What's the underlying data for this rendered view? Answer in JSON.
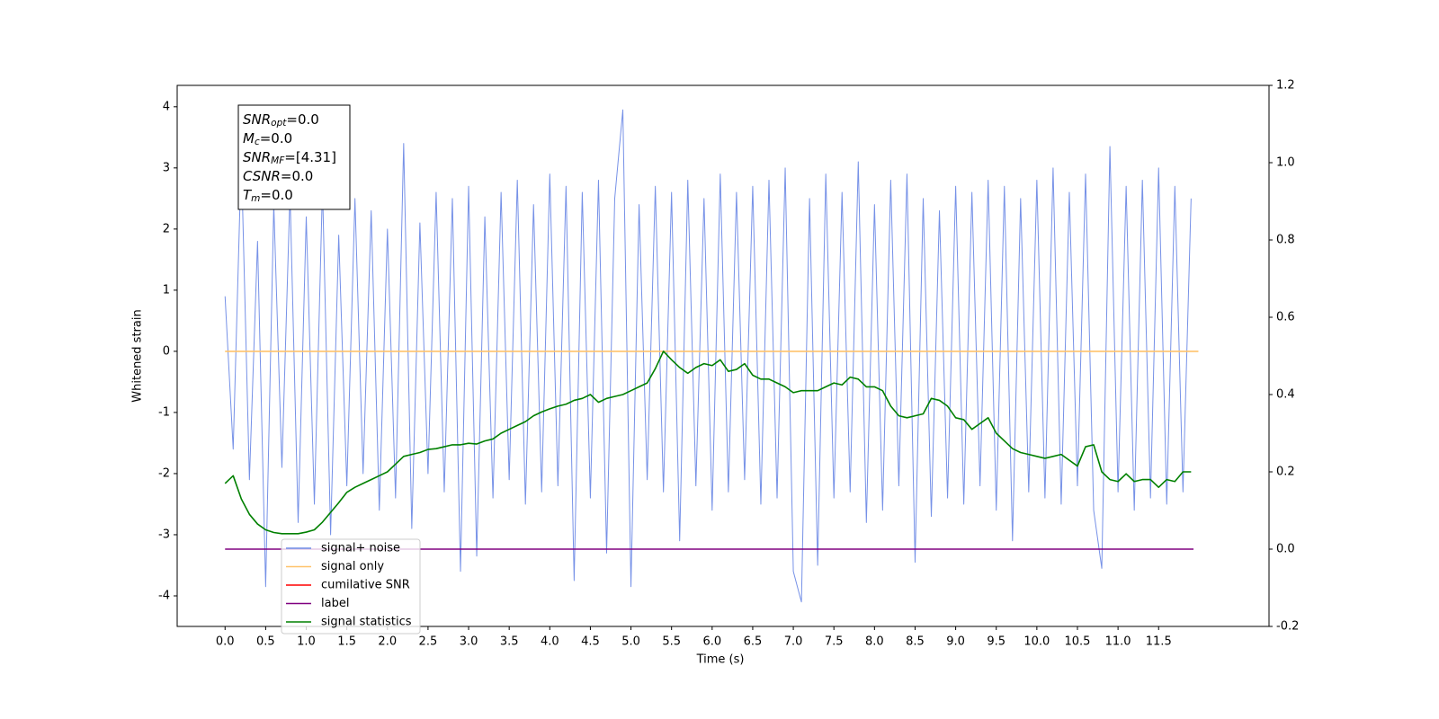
{
  "chart_data": {
    "type": "line",
    "xlabel": "Time (s)",
    "ylabel": "Whitened strain",
    "xlim": [
      -0.59,
      12.86
    ],
    "ylim": [
      -4.5,
      4.35
    ],
    "y2lim": [
      -0.2,
      1.2
    ],
    "xticks": [
      {
        "value": 0,
        "label": "0.0"
      },
      {
        "value": 0.5,
        "label": "0.5"
      },
      {
        "value": 1,
        "label": "1.0"
      },
      {
        "value": 1.5,
        "label": "1.5"
      },
      {
        "value": 2,
        "label": "2.0"
      },
      {
        "value": 2.5,
        "label": "2.5"
      },
      {
        "value": 3,
        "label": "3.0"
      },
      {
        "value": 3.5,
        "label": "3.5"
      },
      {
        "value": 4,
        "label": "4.0"
      },
      {
        "value": 4.5,
        "label": "4.5"
      },
      {
        "value": 5,
        "label": "5.0"
      },
      {
        "value": 5.5,
        "label": "5.5"
      },
      {
        "value": 6,
        "label": "6.0"
      },
      {
        "value": 6.5,
        "label": "6.5"
      },
      {
        "value": 7,
        "label": "7.0"
      },
      {
        "value": 7.5,
        "label": "7.5"
      },
      {
        "value": 8,
        "label": "8.0"
      },
      {
        "value": 8.5,
        "label": "8.5"
      },
      {
        "value": 9,
        "label": "9.0"
      },
      {
        "value": 9.5,
        "label": "9.5"
      },
      {
        "value": 10,
        "label": "10.0"
      },
      {
        "value": 10.5,
        "label": "10.5"
      },
      {
        "value": 11,
        "label": "11.0"
      },
      {
        "value": 11.5,
        "label": "11.5"
      }
    ],
    "yticks": [
      -4,
      -3,
      -2,
      -1,
      0,
      1,
      2,
      3,
      4
    ],
    "y2ticks": [
      -0.2,
      {
        "value": 0,
        "label": "0.0"
      },
      0.2,
      0.4,
      0.6,
      0.8,
      {
        "value": 1,
        "label": "1.0"
      },
      1.2
    ],
    "annotations": [
      {
        "main": "SNR",
        "sub": "opt",
        "rest": "=0.0"
      },
      {
        "main": "M",
        "sub": "c",
        "rest": "=0.0"
      },
      {
        "main": "SNR",
        "sub": "MF",
        "rest": "=[4.31]"
      },
      {
        "main": "CSNR",
        "sub": "",
        "rest": "=0.0"
      },
      {
        "main": "T",
        "sub": "m",
        "rest": "=0.0"
      }
    ],
    "x": [
      0,
      0.1,
      0.2,
      0.3,
      0.4,
      0.5,
      0.6,
      0.7,
      0.8,
      0.9,
      1,
      1.1,
      1.2,
      1.3,
      1.4,
      1.5,
      1.6,
      1.7,
      1.8,
      1.9,
      2,
      2.1,
      2.2,
      2.3,
      2.4,
      2.5,
      2.6,
      2.7,
      2.8,
      2.9,
      3,
      3.1,
      3.2,
      3.3,
      3.4,
      3.5,
      3.6,
      3.7,
      3.8,
      3.9,
      4,
      4.1,
      4.2,
      4.3,
      4.4,
      4.5,
      4.6,
      4.7,
      4.8,
      4.9,
      5,
      5.1,
      5.2,
      5.3,
      5.4,
      5.5,
      5.6,
      5.7,
      5.8,
      5.9,
      6,
      6.1,
      6.2,
      6.3,
      6.4,
      6.5,
      6.6,
      6.7,
      6.8,
      6.9,
      7,
      7.1,
      7.2,
      7.3,
      7.4,
      7.5,
      7.6,
      7.7,
      7.8,
      7.9,
      8,
      8.1,
      8.2,
      8.3,
      8.4,
      8.5,
      8.6,
      8.7,
      8.8,
      8.9,
      9,
      9.1,
      9.2,
      9.3,
      9.4,
      9.5,
      9.6,
      9.7,
      9.8,
      9.9,
      10,
      10.1,
      10.2,
      10.3,
      10.4,
      10.5,
      10.6,
      10.7,
      10.8,
      10.9,
      11,
      11.1,
      11.2,
      11.3,
      11.4,
      11.5,
      11.6,
      11.7,
      11.8,
      11.9
    ],
    "series": [
      {
        "name": "signal+ noise",
        "color": "#6f8be6",
        "values": [
          0.9,
          -1.6,
          3.2,
          -2.1,
          1.8,
          -3.85,
          2.4,
          -1.9,
          2.6,
          -2.8,
          2.2,
          -2.5,
          2.7,
          -3.0,
          1.9,
          -2.2,
          2.5,
          -2.0,
          2.3,
          -2.6,
          2.0,
          -2.4,
          3.4,
          -2.9,
          2.1,
          -2.0,
          2.6,
          -2.3,
          2.5,
          -3.6,
          2.7,
          -3.35,
          2.2,
          -2.4,
          2.6,
          -2.1,
          2.8,
          -2.5,
          2.4,
          -2.3,
          2.9,
          -2.2,
          2.7,
          -3.75,
          2.6,
          -2.4,
          2.8,
          -3.3,
          2.5,
          3.95,
          -3.85,
          2.4,
          -2.1,
          2.7,
          -2.3,
          2.6,
          -3.1,
          2.8,
          -2.2,
          2.5,
          -2.6,
          2.9,
          -2.3,
          2.6,
          -2.1,
          2.7,
          -2.5,
          2.8,
          -2.4,
          3.0,
          -3.6,
          -4.1,
          2.5,
          -3.5,
          2.9,
          -2.4,
          2.6,
          -2.3,
          3.1,
          -2.8,
          2.4,
          -2.6,
          2.8,
          -2.2,
          2.9,
          -3.45,
          2.5,
          -2.7,
          2.3,
          -2.4,
          2.7,
          -2.5,
          2.6,
          -2.2,
          2.8,
          -2.6,
          2.7,
          -3.1,
          2.5,
          -2.3,
          2.8,
          -2.4,
          3.0,
          -2.5,
          2.6,
          -2.2,
          2.9,
          -2.6,
          -3.55,
          3.35,
          -2.3,
          2.7,
          -2.6,
          2.8,
          -2.4,
          3.0,
          -2.5,
          2.7,
          -2.3,
          2.5
        ]
      },
      {
        "name": "signal only",
        "color": "#ffc36b",
        "x": [
          0,
          11.99
        ],
        "values": [
          0,
          0
        ]
      },
      {
        "name": "cumilative SNR",
        "color": "#ff0000"
      },
      {
        "name": "label",
        "color": "#800080",
        "axis": "y2",
        "x": [
          0,
          11.93
        ],
        "values": [
          0,
          0
        ]
      },
      {
        "name": "signal statistics",
        "color": "#008000",
        "axis": "y2",
        "values": [
          0.17,
          0.19,
          0.13,
          0.09,
          0.065,
          0.05,
          0.043,
          0.04,
          0.04,
          0.04,
          0.044,
          0.05,
          0.07,
          0.095,
          0.12,
          0.147,
          0.16,
          0.17,
          0.18,
          0.19,
          0.2,
          0.22,
          0.24,
          0.245,
          0.25,
          0.258,
          0.26,
          0.265,
          0.27,
          0.27,
          0.274,
          0.272,
          0.28,
          0.285,
          0.3,
          0.31,
          0.32,
          0.33,
          0.345,
          0.355,
          0.363,
          0.37,
          0.375,
          0.385,
          0.39,
          0.4,
          0.38,
          0.39,
          0.395,
          0.4,
          0.41,
          0.42,
          0.43,
          0.467,
          0.512,
          0.49,
          0.47,
          0.455,
          0.47,
          0.48,
          0.475,
          0.49,
          0.46,
          0.465,
          0.48,
          0.45,
          0.44,
          0.44,
          0.43,
          0.42,
          0.405,
          0.41,
          0.41,
          0.41,
          0.42,
          0.43,
          0.425,
          0.445,
          0.44,
          0.42,
          0.42,
          0.41,
          0.37,
          0.345,
          0.34,
          0.345,
          0.35,
          0.39,
          0.385,
          0.37,
          0.34,
          0.335,
          0.31,
          0.325,
          0.34,
          0.3,
          0.28,
          0.26,
          0.25,
          0.245,
          0.24,
          0.235,
          0.24,
          0.245,
          0.23,
          0.215,
          0.265,
          0.27,
          0.2,
          0.18,
          0.175,
          0.195,
          0.175,
          0.18,
          0.18,
          0.16,
          0.18,
          0.175,
          0.2,
          0.2
        ]
      }
    ],
    "legend": "lower left"
  }
}
